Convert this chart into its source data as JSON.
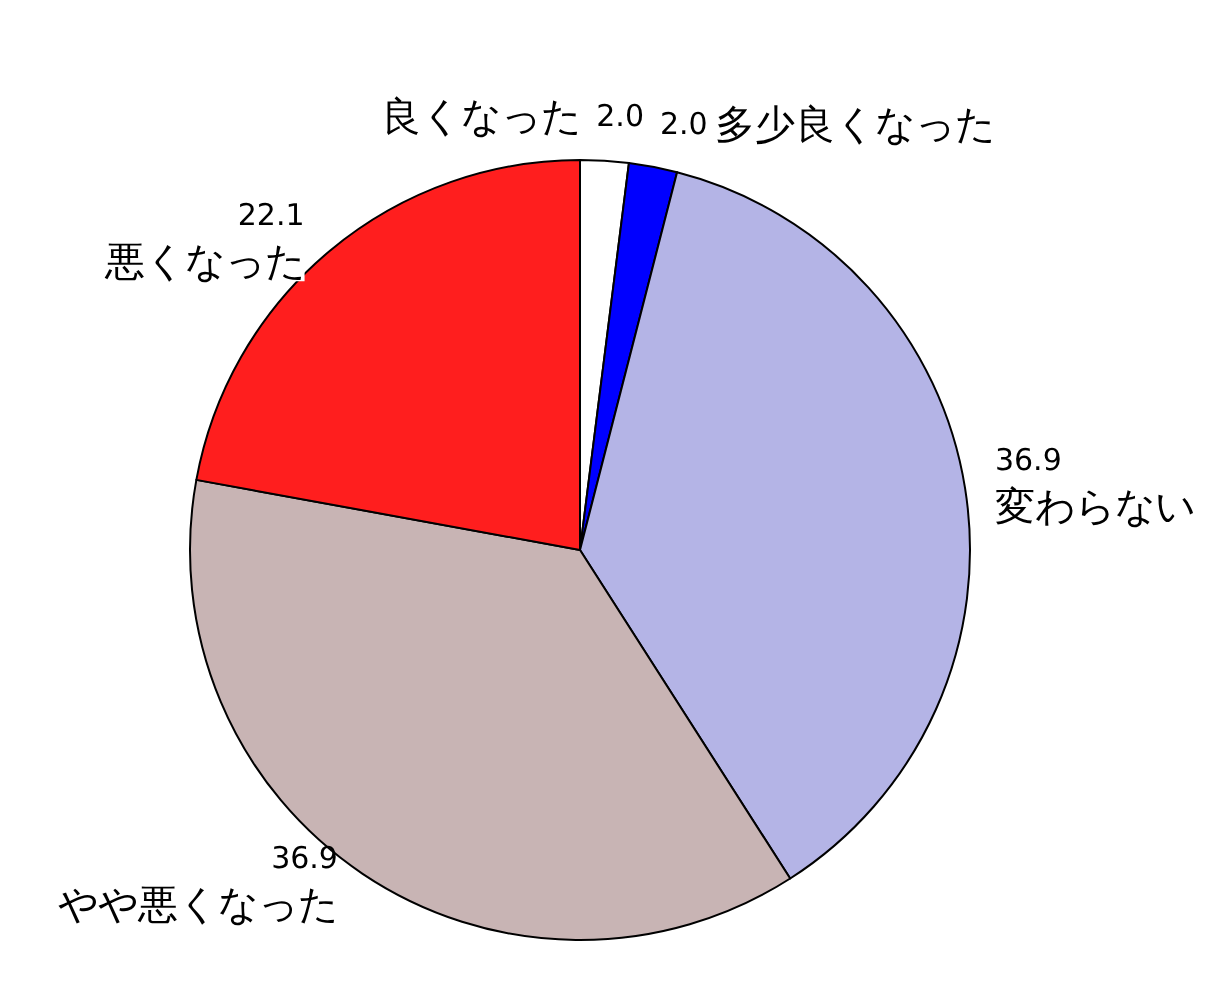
{
  "chart_data": {
    "type": "pie",
    "categories": [
      "良くなった",
      "多少良くなった",
      "変わらない",
      "やや悪くなった",
      "悪くなった"
    ],
    "values": [
      2.0,
      2.0,
      36.9,
      36.9,
      22.1
    ],
    "value_labels": [
      "2.0",
      "2.0",
      "36.9",
      "36.9",
      "22.1"
    ],
    "colors": [
      "#ffffff",
      "#0000ff",
      "#b4b4e6",
      "#c8b4b4",
      "#ff1e1e"
    ],
    "legend": false
  }
}
